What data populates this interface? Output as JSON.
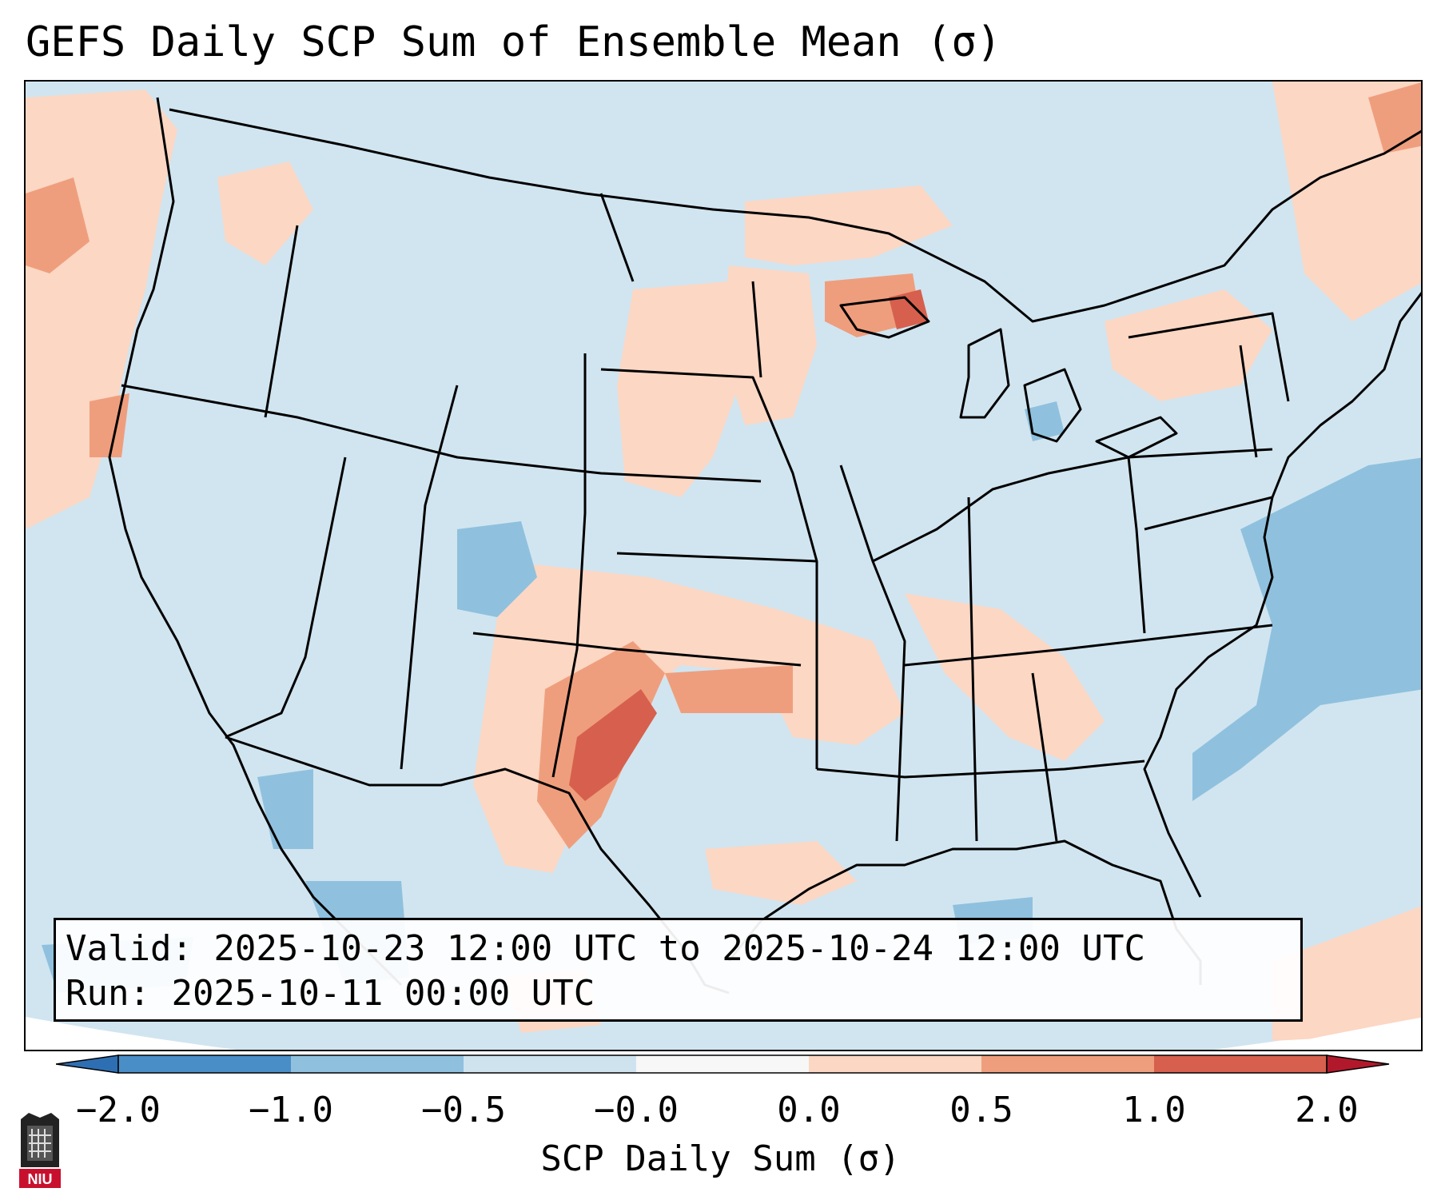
{
  "title": "GEFS Daily SCP Sum of Ensemble Mean (σ)",
  "info": {
    "valid_line": "Valid: 2025-10-23 12:00 UTC to 2025-10-24 12:00 UTC",
    "run_line": "Run:   2025-10-11 00:00 UTC"
  },
  "colorbar": {
    "label": "SCP Daily Sum (σ)",
    "ticks": [
      "−2.0",
      "−1.0",
      "−0.5",
      "−0.0",
      "0.0",
      "0.5",
      "1.0",
      "2.0"
    ],
    "colors": [
      "#4a8ec8",
      "#8fc1de",
      "#cfe3ef",
      "#f7f7f7",
      "#fbd7c4",
      "#ef9e7d",
      "#d6604d"
    ],
    "under_color": "#2e6fb3",
    "over_color": "#b2182b"
  },
  "map": {
    "background_color": "#d1e5f0",
    "outside_color": "#ffffff",
    "region": "Continental United States"
  },
  "logo": {
    "text": "NIU"
  }
}
